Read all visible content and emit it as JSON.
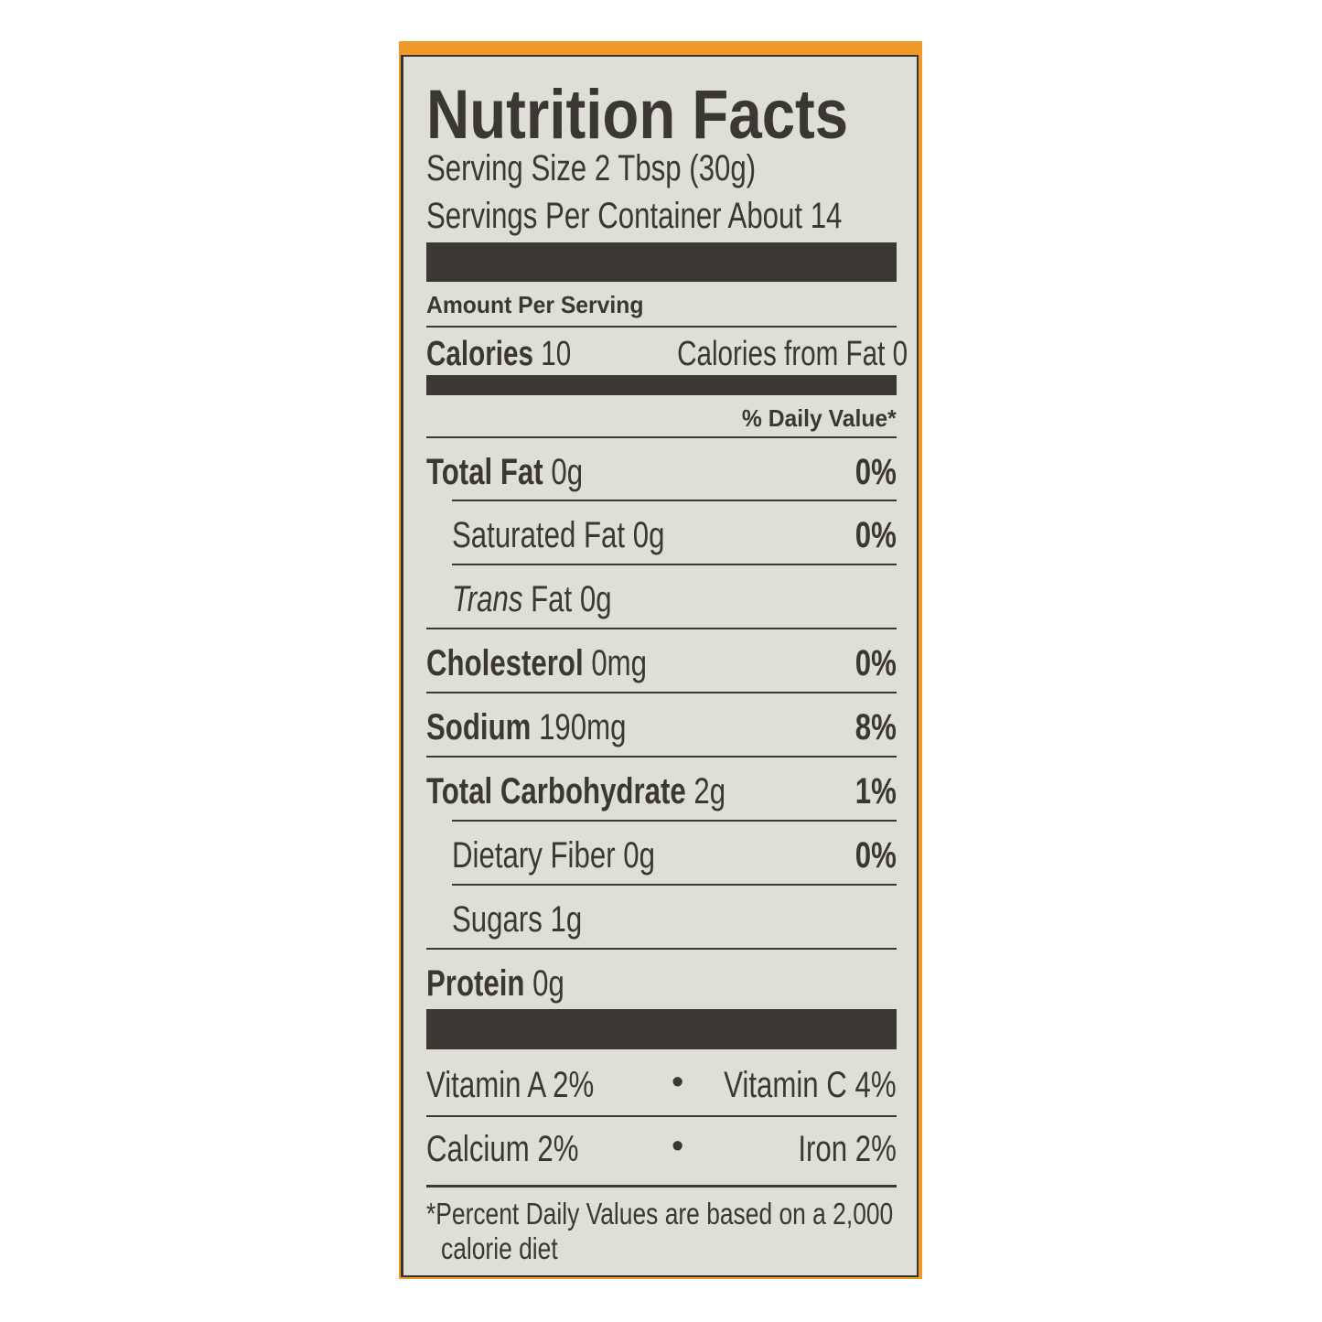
{
  "title": "Nutrition Facts",
  "serving_size": "Serving Size 2 Tbsp (30g)",
  "servings_per_container": "Servings Per Container About 14",
  "amount_per_serving": "Amount Per Serving",
  "calories": {
    "label": "Calories",
    "value": "10",
    "from_fat": "Calories from Fat 0"
  },
  "daily_value_header": "% Daily Value*",
  "nutrients": [
    {
      "label": "Total Fat",
      "amount": "0g",
      "dv": "0%"
    },
    {
      "label": "Saturated Fat",
      "amount": "0g",
      "dv": "0%"
    },
    {
      "label_italic": "Trans",
      "label": "Fat",
      "amount": "0g",
      "dv": ""
    },
    {
      "label": "Cholesterol",
      "amount": "0mg",
      "dv": "0%"
    },
    {
      "label": "Sodium",
      "amount": "190mg",
      "dv": "8%"
    },
    {
      "label": "Total Carbohydrate",
      "amount": "2g",
      "dv": "1%"
    },
    {
      "label": "Dietary Fiber",
      "amount": "0g",
      "dv": "0%"
    },
    {
      "label": "Sugars",
      "amount": "1g",
      "dv": ""
    },
    {
      "label": "Protein",
      "amount": "0g",
      "dv": ""
    }
  ],
  "vitamins": [
    {
      "left": "Vitamin A 2%",
      "sep": "•",
      "right": "Vitamin C 4%"
    },
    {
      "left": "Calcium 2%",
      "sep": "•",
      "right": "Iron 2%"
    }
  ],
  "footnote": {
    "line1": "*Percent Daily Values are based on a 2,000",
    "line2": "calorie diet"
  },
  "colors": {
    "text": "#3b3733",
    "background": "#dedfd6",
    "accent": "#f09a2a"
  }
}
